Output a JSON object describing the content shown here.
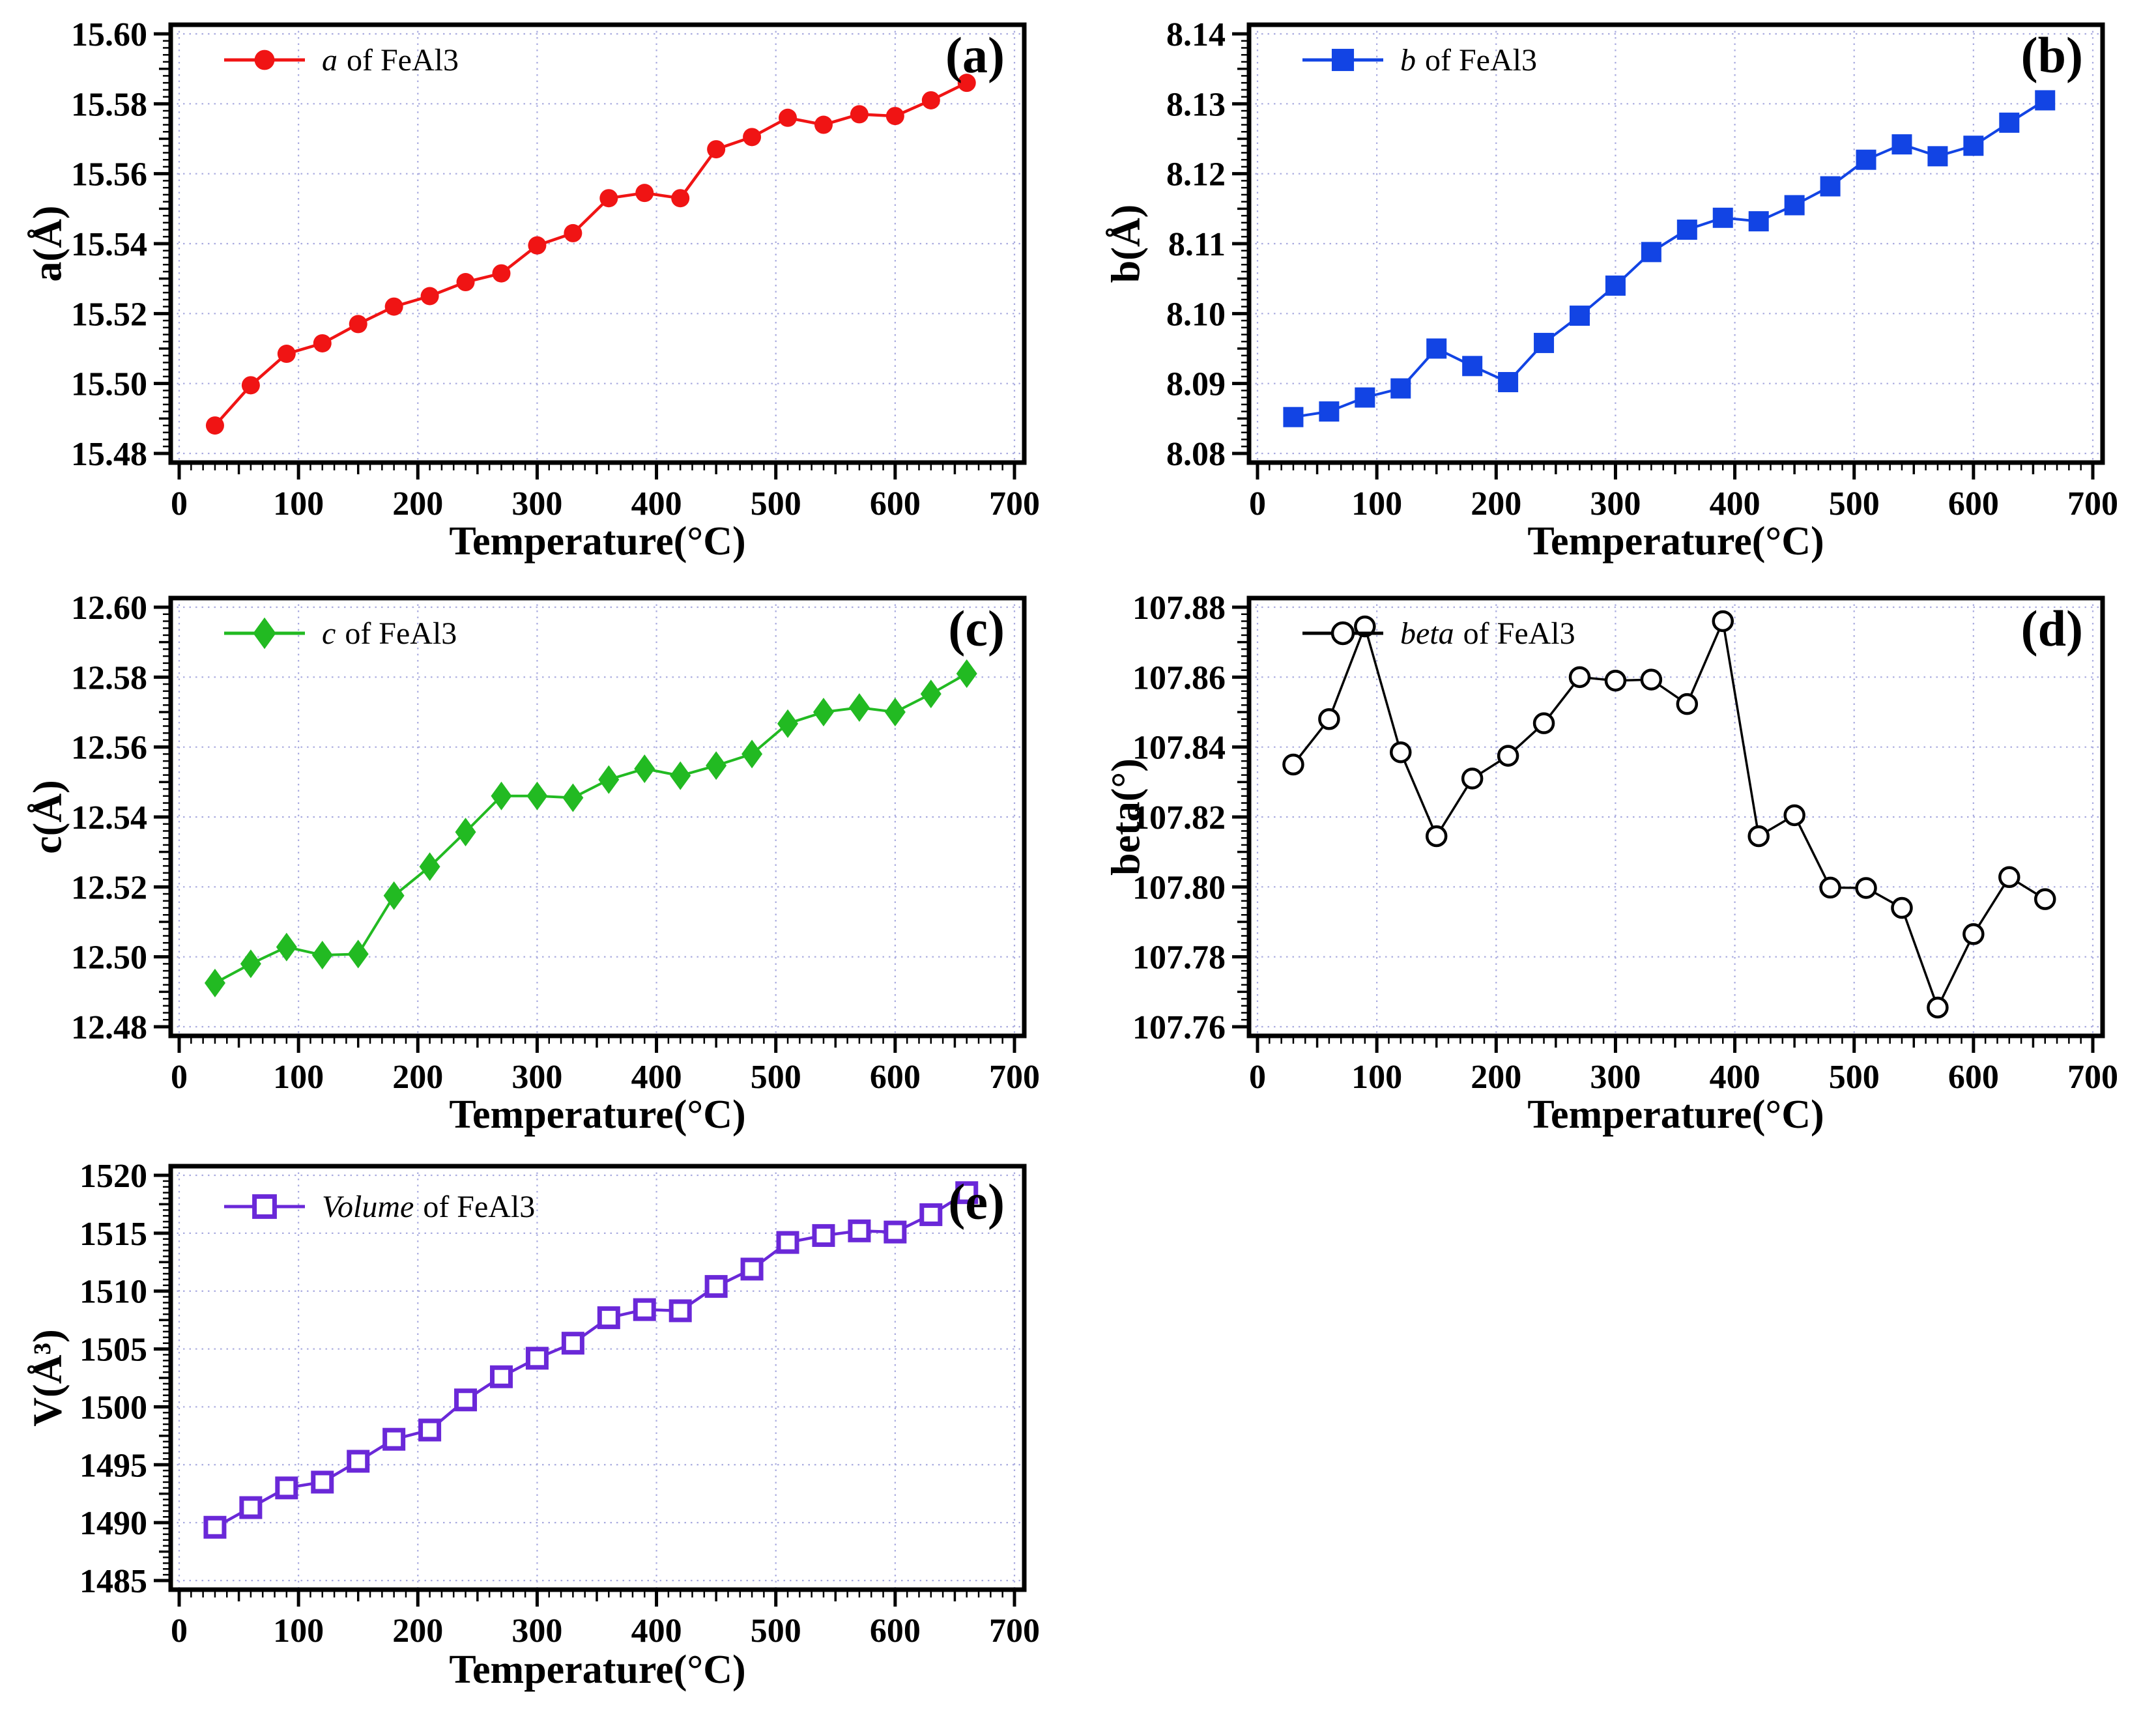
{
  "page": {
    "background": "#ffffff",
    "grid_color": "#a8aadf",
    "axis_color": "#000000"
  },
  "figure": {
    "xlabel": "Temperature(°C)",
    "compound": "FeAl3"
  },
  "chart_data": [
    {
      "panel": "(a)",
      "type": "line",
      "xlabel": "Temperature(°C)",
      "ylabel": "a(Å)",
      "legend": {
        "italic": "a",
        "rest": "of FeAl3"
      },
      "series_color": "#f01414",
      "marker": "circle",
      "marker_filled": true,
      "line_width": 4.5,
      "xlim": [
        0,
        700
      ],
      "xticks": [
        0,
        100,
        200,
        300,
        400,
        500,
        600,
        700
      ],
      "x_minor_step": 10,
      "ylim": [
        15.48,
        15.6
      ],
      "yticks": [
        15.48,
        15.5,
        15.52,
        15.54,
        15.56,
        15.58,
        15.6
      ],
      "ytick_decimals": 2,
      "y_minor_step": 0.002,
      "grid": true,
      "grid_color": "#a8aadf",
      "legend_position": "top-left",
      "x": [
        30,
        60,
        90,
        120,
        150,
        180,
        210,
        240,
        270,
        300,
        330,
        360,
        390,
        420,
        450,
        480,
        510,
        540,
        570,
        600,
        630,
        660
      ],
      "y": [
        15.488,
        15.4995,
        15.5085,
        15.5115,
        15.517,
        15.522,
        15.525,
        15.529,
        15.5315,
        15.5395,
        15.543,
        15.553,
        15.5545,
        15.553,
        15.567,
        15.5705,
        15.576,
        15.574,
        15.577,
        15.5765,
        15.581,
        15.586
      ]
    },
    {
      "panel": "(b)",
      "type": "line",
      "xlabel": "Temperature(°C)",
      "ylabel": "b(Å)",
      "legend": {
        "italic": "b",
        "rest": "of FeAl3"
      },
      "series_color": "#1244e4",
      "marker": "square",
      "marker_filled": true,
      "line_width": 4,
      "xlim": [
        0,
        700
      ],
      "xticks": [
        0,
        100,
        200,
        300,
        400,
        500,
        600,
        700
      ],
      "x_minor_step": 10,
      "ylim": [
        8.08,
        8.14
      ],
      "yticks": [
        8.08,
        8.09,
        8.1,
        8.11,
        8.12,
        8.13,
        8.14
      ],
      "ytick_decimals": 2,
      "y_minor_step": 0.001,
      "grid": true,
      "grid_color": "#a8aadf",
      "legend_position": "top-left",
      "x": [
        30,
        60,
        90,
        120,
        150,
        180,
        210,
        240,
        270,
        300,
        330,
        360,
        390,
        420,
        450,
        480,
        510,
        540,
        570,
        600,
        630,
        660
      ],
      "y": [
        8.0852,
        8.086,
        8.088,
        8.0893,
        8.095,
        8.0925,
        8.0902,
        8.0958,
        8.0997,
        8.104,
        8.1088,
        8.112,
        8.1137,
        8.1132,
        8.1155,
        8.1182,
        8.122,
        8.1242,
        8.1225,
        8.124,
        8.1273,
        8.1305
      ]
    },
    {
      "panel": "(c)",
      "type": "line",
      "xlabel": "Temperature(°C)",
      "ylabel": "c(Å)",
      "legend": {
        "italic": "c",
        "rest": "of FeAl3"
      },
      "series_color": "#22ba22",
      "marker": "diamond",
      "marker_filled": true,
      "line_width": 4,
      "xlim": [
        0,
        700
      ],
      "xticks": [
        0,
        100,
        200,
        300,
        400,
        500,
        600,
        700
      ],
      "x_minor_step": 10,
      "ylim": [
        12.48,
        12.6
      ],
      "yticks": [
        12.48,
        12.5,
        12.52,
        12.54,
        12.56,
        12.58,
        12.6
      ],
      "ytick_decimals": 2,
      "y_minor_step": 0.002,
      "grid": true,
      "grid_color": "#a8aadf",
      "legend_position": "top-left",
      "x": [
        30,
        60,
        90,
        120,
        150,
        180,
        210,
        240,
        270,
        300,
        330,
        360,
        390,
        420,
        450,
        480,
        510,
        540,
        570,
        600,
        630,
        660
      ],
      "y": [
        12.4925,
        12.498,
        12.5028,
        12.5005,
        12.5008,
        12.5175,
        12.5258,
        12.5357,
        12.546,
        12.546,
        12.5455,
        12.5507,
        12.5538,
        12.5518,
        12.5547,
        12.558,
        12.5667,
        12.57,
        12.5713,
        12.57,
        12.5752,
        12.581
      ]
    },
    {
      "panel": "(d)",
      "type": "line",
      "xlabel": "Temperature(°C)",
      "ylabel": "beta(°)",
      "legend": {
        "italic": "beta",
        "rest": "of FeAl3"
      },
      "series_color": "#000000",
      "marker": "circle",
      "marker_filled": false,
      "line_width": 3.5,
      "xlim": [
        0,
        700
      ],
      "xticks": [
        0,
        100,
        200,
        300,
        400,
        500,
        600,
        700
      ],
      "x_minor_step": 10,
      "ylim": [
        107.76,
        107.88
      ],
      "yticks": [
        107.76,
        107.78,
        107.8,
        107.82,
        107.84,
        107.86,
        107.88
      ],
      "ytick_decimals": 2,
      "y_minor_step": 0.002,
      "grid": true,
      "grid_color": "#a8aadf",
      "legend_position": "top-left",
      "x": [
        30,
        60,
        90,
        120,
        150,
        180,
        210,
        240,
        270,
        300,
        330,
        360,
        390,
        420,
        450,
        480,
        510,
        540,
        570,
        600,
        630,
        660
      ],
      "y": [
        107.835,
        107.848,
        107.8745,
        107.8385,
        107.8145,
        107.831,
        107.8375,
        107.8468,
        107.86,
        107.859,
        107.8593,
        107.8523,
        107.876,
        107.8145,
        107.8205,
        107.7998,
        107.7997,
        107.794,
        107.7655,
        107.7865,
        107.8028,
        107.7965
      ]
    },
    {
      "panel": "(e)",
      "type": "line",
      "xlabel": "Temperature(°C)",
      "ylabel": "V(Å³)",
      "legend": {
        "italic": "Volume",
        "rest": "of FeAl3"
      },
      "series_color": "#6a28d8",
      "marker": "square",
      "marker_filled": false,
      "line_width": 4.5,
      "xlim": [
        0,
        700
      ],
      "xticks": [
        0,
        100,
        200,
        300,
        400,
        500,
        600,
        700
      ],
      "x_minor_step": 10,
      "ylim": [
        1485,
        1520
      ],
      "yticks": [
        1485,
        1490,
        1495,
        1500,
        1505,
        1510,
        1515,
        1520
      ],
      "ytick_decimals": 0,
      "y_minor_step": 0.5,
      "grid": true,
      "grid_color": "#a8aadf",
      "legend_position": "top-left",
      "x": [
        30,
        60,
        90,
        120,
        150,
        180,
        210,
        240,
        270,
        300,
        330,
        360,
        390,
        420,
        450,
        480,
        510,
        540,
        570,
        600,
        630,
        660
      ],
      "y": [
        1489.6,
        1491.3,
        1493.0,
        1493.5,
        1495.3,
        1497.2,
        1498.0,
        1500.6,
        1502.6,
        1504.2,
        1505.5,
        1507.7,
        1508.4,
        1508.3,
        1510.4,
        1511.9,
        1514.2,
        1514.8,
        1515.2,
        1515.1,
        1516.6,
        1518.5
      ]
    }
  ]
}
